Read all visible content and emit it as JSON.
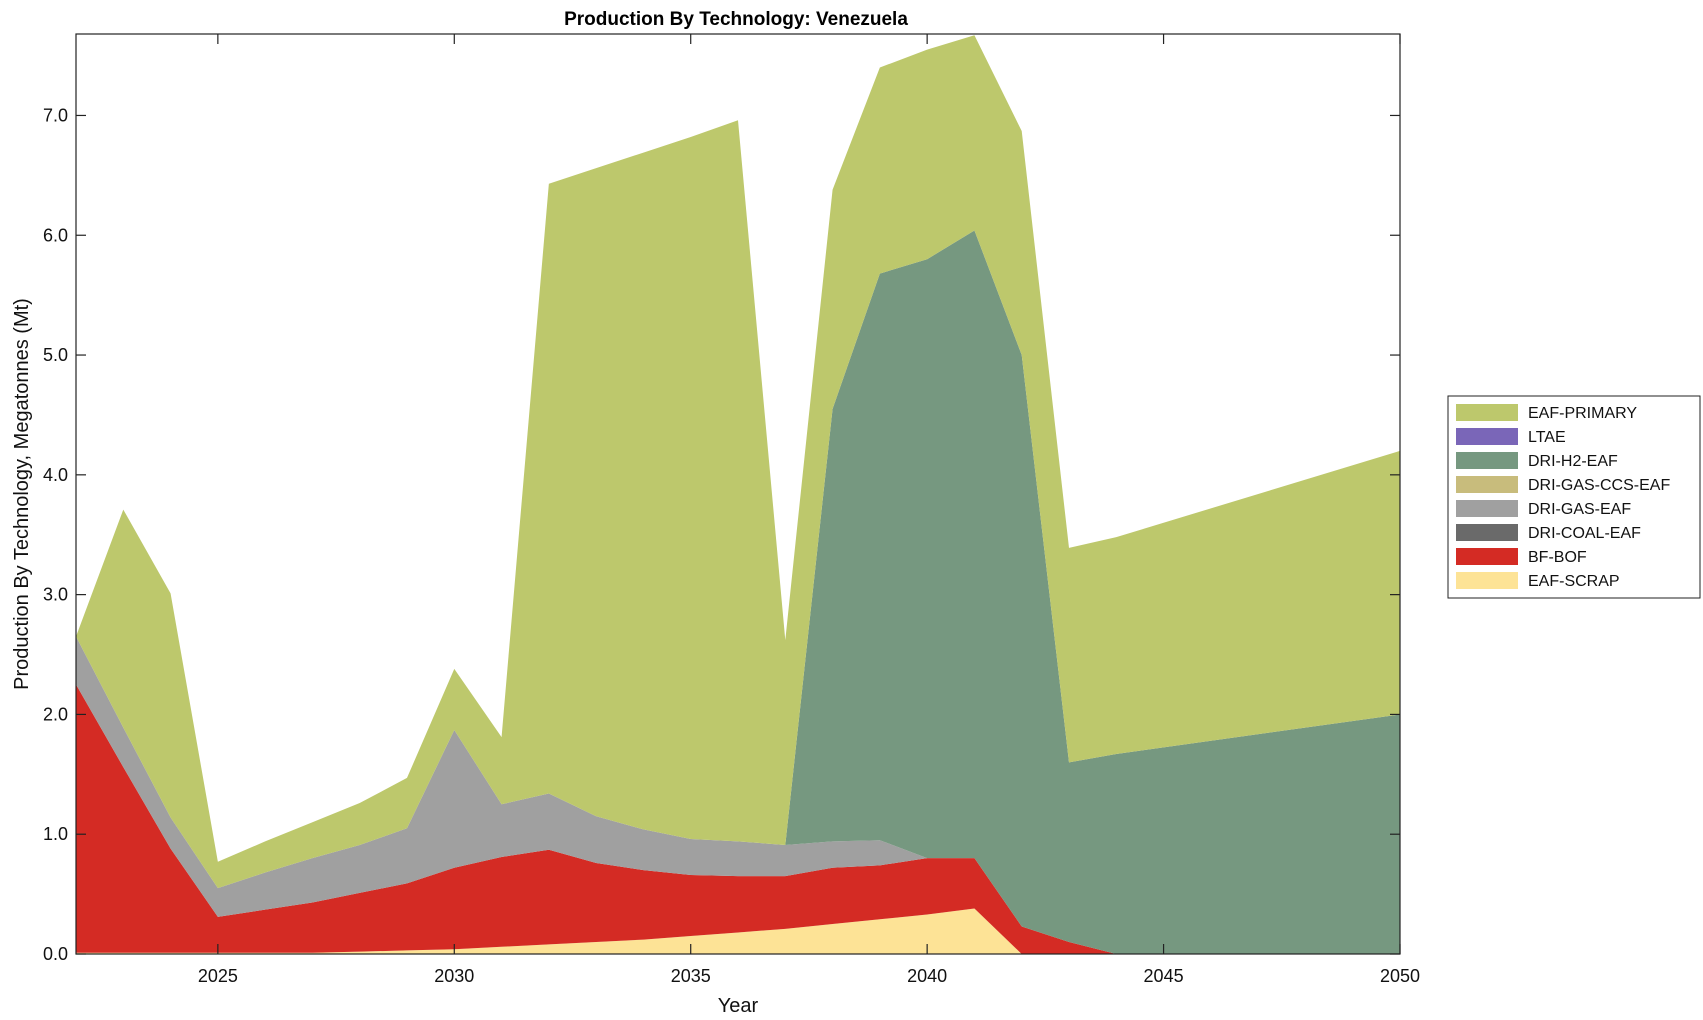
{
  "chart_data": {
    "type": "area",
    "stacked": true,
    "title": "Production By Technology: Venezuela",
    "xlabel": "Year",
    "ylabel": "Production By Technology, Megatonnes (Mt)",
    "xlim": [
      2022,
      2050
    ],
    "ylim": [
      0,
      7.68
    ],
    "x_ticks": [
      2025,
      2030,
      2035,
      2040,
      2045,
      2050
    ],
    "y_ticks": [
      "0.0",
      "1.0",
      "2.0",
      "3.0",
      "4.0",
      "5.0",
      "6.0",
      "7.0"
    ],
    "y_tick_values": [
      0,
      1,
      2,
      3,
      4,
      5,
      6,
      7
    ],
    "legend_position": "right",
    "x": [
      2022,
      2023,
      2024,
      2025,
      2026,
      2027,
      2028,
      2029,
      2030,
      2031,
      2032,
      2033,
      2034,
      2035,
      2036,
      2037,
      2038,
      2039,
      2040,
      2041,
      2042,
      2043,
      2044,
      2050
    ],
    "series": [
      {
        "name": "EAF-SCRAP",
        "color": "#fde396",
        "values": [
          0.01,
          0.01,
          0.01,
          0.01,
          0.01,
          0.01,
          0.02,
          0.03,
          0.04,
          0.06,
          0.08,
          0.1,
          0.12,
          0.15,
          0.18,
          0.21,
          0.25,
          0.29,
          0.33,
          0.38,
          0,
          0,
          0,
          0
        ]
      },
      {
        "name": "BF-BOF",
        "color": "#d42b24",
        "values": [
          2.24,
          1.55,
          0.87,
          0.3,
          0.36,
          0.42,
          0.49,
          0.56,
          0.68,
          0.75,
          0.79,
          0.66,
          0.58,
          0.51,
          0.47,
          0.44,
          0.47,
          0.45,
          0.47,
          0.42,
          0.23,
          0.1,
          0,
          0
        ]
      },
      {
        "name": "DRI-COAL-EAF",
        "color": "#6a6a6a",
        "values": [
          0,
          0,
          0,
          0,
          0,
          0,
          0,
          0,
          0,
          0,
          0,
          0,
          0,
          0,
          0,
          0,
          0,
          0,
          0,
          0,
          0,
          0,
          0,
          0
        ]
      },
      {
        "name": "DRI-GAS-EAF",
        "color": "#a0a0a0",
        "values": [
          0.4,
          0.33,
          0.26,
          0.24,
          0.31,
          0.37,
          0.4,
          0.46,
          1.15,
          0.44,
          0.47,
          0.39,
          0.34,
          0.3,
          0.29,
          0.26,
          0.22,
          0.21,
          0,
          0,
          0,
          0,
          0,
          0
        ]
      },
      {
        "name": "DRI-GAS-CCS-EAF",
        "color": "#c8bc7c",
        "values": [
          0,
          0,
          0,
          0,
          0,
          0,
          0,
          0,
          0,
          0,
          0,
          0,
          0,
          0,
          0,
          0,
          0,
          0,
          0,
          0,
          0,
          0,
          0,
          0
        ]
      },
      {
        "name": "DRI-H2-EAF",
        "color": "#769880",
        "values": [
          0,
          0,
          0,
          0,
          0,
          0,
          0,
          0,
          0,
          0,
          0,
          0,
          0,
          0,
          0,
          0,
          3.61,
          4.73,
          5.0,
          5.24,
          4.77,
          1.5,
          1.67,
          2.0
        ]
      },
      {
        "name": "LTAE",
        "color": "#7a66b8",
        "values": [
          0,
          0,
          0,
          0,
          0,
          0,
          0,
          0,
          0,
          0,
          0,
          0,
          0,
          0,
          0,
          0,
          0,
          0,
          0,
          0,
          0,
          0,
          0,
          0
        ]
      },
      {
        "name": "EAF-PRIMARY",
        "color": "#bdc86c",
        "values": [
          0,
          1.82,
          1.87,
          0.22,
          0.26,
          0.3,
          0.35,
          0.42,
          0.51,
          0.56,
          5.09,
          5.41,
          5.65,
          5.86,
          6.02,
          1.71,
          1.83,
          1.72,
          1.75,
          1.63,
          1.87,
          1.79,
          1.81,
          2.2
        ]
      }
    ],
    "legend_order": [
      "EAF-PRIMARY",
      "LTAE",
      "DRI-H2-EAF",
      "DRI-GAS-CCS-EAF",
      "DRI-GAS-EAF",
      "DRI-COAL-EAF",
      "BF-BOF",
      "EAF-SCRAP"
    ]
  }
}
